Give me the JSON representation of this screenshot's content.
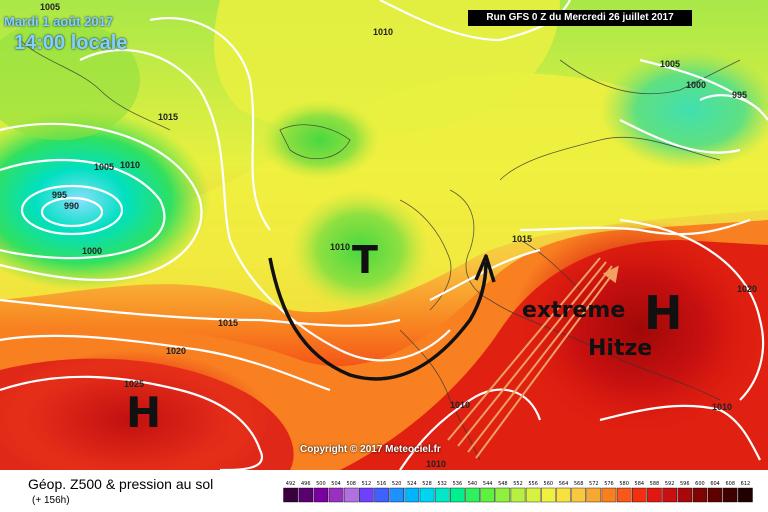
{
  "header": {
    "date": "Mardi 1 août 2017",
    "time": "14:00 locale",
    "run": "Run GFS 0 Z du Mercredi 26 juillet 2017"
  },
  "copyright": "Copyright © 2017 Meteociel.fr",
  "annotations": {
    "low_label": "T",
    "high_label_west": "H",
    "high_label_east": "H",
    "text_line1": "extreme",
    "text_line2": "Hitze"
  },
  "isobars": [
    {
      "label": "1005",
      "id": "iso-1005-nw"
    },
    {
      "label": "1010",
      "id": "iso-1010-n"
    },
    {
      "label": "1005",
      "id": "iso-1005-ne"
    },
    {
      "label": "995",
      "id": "iso-995-ne"
    },
    {
      "label": "1000",
      "id": "iso-1000-ne"
    },
    {
      "label": "1015",
      "id": "iso-1015-w"
    },
    {
      "label": "1005",
      "id": "iso-1005-w"
    },
    {
      "label": "1010",
      "id": "iso-1010-w"
    },
    {
      "label": "995",
      "id": "iso-995-w"
    },
    {
      "label": "990",
      "id": "iso-990-w"
    },
    {
      "label": "1000",
      "id": "iso-1000-w"
    },
    {
      "label": "1010",
      "id": "iso-1010-c"
    },
    {
      "label": "1015",
      "id": "iso-1015-c"
    },
    {
      "label": "1015",
      "id": "iso-1015-sw"
    },
    {
      "label": "1020",
      "id": "iso-1020-sw"
    },
    {
      "label": "1025",
      "id": "iso-1025-sw"
    },
    {
      "label": "1020",
      "id": "iso-1020-e"
    },
    {
      "label": "1010",
      "id": "iso-1010-s"
    },
    {
      "label": "1010",
      "id": "iso-1010-se"
    },
    {
      "label": "1010",
      "id": "iso-1010-bottom"
    }
  ],
  "legend": {
    "title": "Géop. Z500 & pression au sol",
    "hours": "(+ 156h)",
    "scale": [
      {
        "v": "492",
        "c": "#3a0040"
      },
      {
        "v": "496",
        "c": "#5a0070"
      },
      {
        "v": "500",
        "c": "#7a00a0"
      },
      {
        "v": "504",
        "c": "#9a30c0"
      },
      {
        "v": "508",
        "c": "#b070e0"
      },
      {
        "v": "512",
        "c": "#7040ff"
      },
      {
        "v": "516",
        "c": "#4060ff"
      },
      {
        "v": "520",
        "c": "#2090ff"
      },
      {
        "v": "524",
        "c": "#00b4ff"
      },
      {
        "v": "528",
        "c": "#00d4f0"
      },
      {
        "v": "532",
        "c": "#00e8c8"
      },
      {
        "v": "536",
        "c": "#00f090"
      },
      {
        "v": "540",
        "c": "#30f060"
      },
      {
        "v": "544",
        "c": "#60f040"
      },
      {
        "v": "548",
        "c": "#90f040"
      },
      {
        "v": "552",
        "c": "#b8f040"
      },
      {
        "v": "556",
        "c": "#d8f040"
      },
      {
        "v": "560",
        "c": "#f0f040"
      },
      {
        "v": "564",
        "c": "#f8e040"
      },
      {
        "v": "568",
        "c": "#f8c840"
      },
      {
        "v": "572",
        "c": "#f8a830"
      },
      {
        "v": "576",
        "c": "#f88020"
      },
      {
        "v": "580",
        "c": "#f85818"
      },
      {
        "v": "584",
        "c": "#f03010"
      },
      {
        "v": "588",
        "c": "#e01810"
      },
      {
        "v": "592",
        "c": "#c81010"
      },
      {
        "v": "596",
        "c": "#a80808"
      },
      {
        "v": "600",
        "c": "#800404"
      },
      {
        "v": "604",
        "c": "#600000"
      },
      {
        "v": "608",
        "c": "#400000"
      },
      {
        "v": "612",
        "c": "#200000"
      }
    ]
  }
}
